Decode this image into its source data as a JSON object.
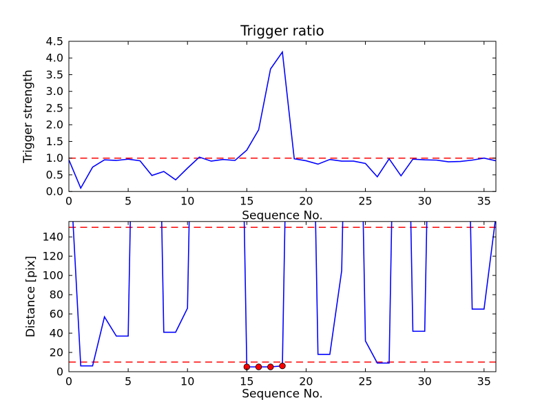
{
  "figure": {
    "background_color": "#ffffff",
    "series_color": "#0000ff",
    "threshold_color": "#ff0000",
    "marker_face_color": "#ff0000",
    "marker_edge_color": "#000000",
    "spine_color": "#000000"
  },
  "chart_data": [
    {
      "type": "line",
      "title": "Trigger ratio",
      "xlabel": "Sequence No.",
      "ylabel": "Trigger strength",
      "xlim": [
        0,
        36
      ],
      "ylim": [
        0,
        4.5
      ],
      "xticks": [
        0,
        5,
        10,
        15,
        20,
        25,
        30,
        35
      ],
      "xticklabels": [
        "0",
        "5",
        "10",
        "15",
        "20",
        "25",
        "30",
        "35"
      ],
      "yticks": [
        0.0,
        0.5,
        1.0,
        1.5,
        2.0,
        2.5,
        3.0,
        3.5,
        4.0,
        4.5
      ],
      "yticklabels": [
        "0.0",
        "0.5",
        "1.0",
        "1.5",
        "2.0",
        "2.5",
        "3.0",
        "3.5",
        "4.0",
        "4.5"
      ],
      "grid": false,
      "legend": null,
      "thresholds": [
        1.0
      ],
      "x": [
        0,
        1,
        2,
        3,
        4,
        5,
        6,
        7,
        8,
        9,
        10,
        11,
        12,
        13,
        14,
        15,
        16,
        17,
        18,
        19,
        20,
        21,
        22,
        23,
        24,
        25,
        26,
        27,
        28,
        29,
        30,
        31,
        32,
        33,
        34,
        35,
        36
      ],
      "y": [
        0.95,
        0.1,
        0.73,
        0.95,
        0.93,
        0.97,
        0.92,
        0.48,
        0.6,
        0.35,
        0.7,
        1.03,
        0.91,
        0.96,
        0.93,
        1.24,
        1.85,
        3.67,
        4.18,
        0.98,
        0.92,
        0.82,
        0.96,
        0.91,
        0.91,
        0.84,
        0.44,
        0.98,
        0.47,
        0.97,
        0.95,
        0.94,
        0.89,
        0.9,
        0.94,
        1.0,
        0.92
      ],
      "markers": null
    },
    {
      "type": "line",
      "title": "",
      "xlabel": "Sequence No.",
      "ylabel": "Distance [pix]",
      "xlim": [
        0,
        36
      ],
      "ylim": [
        0,
        156
      ],
      "xticks": [
        0,
        5,
        10,
        15,
        20,
        25,
        30,
        35
      ],
      "xticklabels": [
        "0",
        "5",
        "10",
        "15",
        "20",
        "25",
        "30",
        "35"
      ],
      "yticks": [
        0,
        20,
        40,
        60,
        80,
        100,
        120,
        140
      ],
      "yticklabels": [
        "0",
        "20",
        "40",
        "60",
        "80",
        "100",
        "120",
        "140"
      ],
      "grid": false,
      "legend": null,
      "thresholds": [
        150,
        10
      ],
      "x": [
        0,
        1,
        2,
        3,
        4,
        5,
        6,
        7,
        8,
        9,
        10,
        11,
        12,
        13,
        14,
        15,
        16,
        17,
        18,
        19,
        20,
        21,
        22,
        23,
        24,
        25,
        26,
        27,
        28,
        29,
        30,
        31,
        32,
        33,
        34,
        35,
        36
      ],
      "y": [
        235,
        6,
        6,
        57,
        37,
        37,
        700,
        700,
        41,
        41,
        66,
        700,
        700,
        700,
        700,
        5,
        5,
        5,
        6,
        700,
        700,
        18,
        18,
        105,
        700,
        32,
        9,
        9,
        700,
        42,
        42,
        700,
        700,
        700,
        65,
        65,
        162
      ],
      "y_offscale_note": "values above 156 are clipped by the top of the axes in the rendering",
      "markers": {
        "x": [
          15,
          16,
          17,
          18
        ],
        "y": [
          5,
          5,
          5,
          6
        ]
      }
    }
  ]
}
